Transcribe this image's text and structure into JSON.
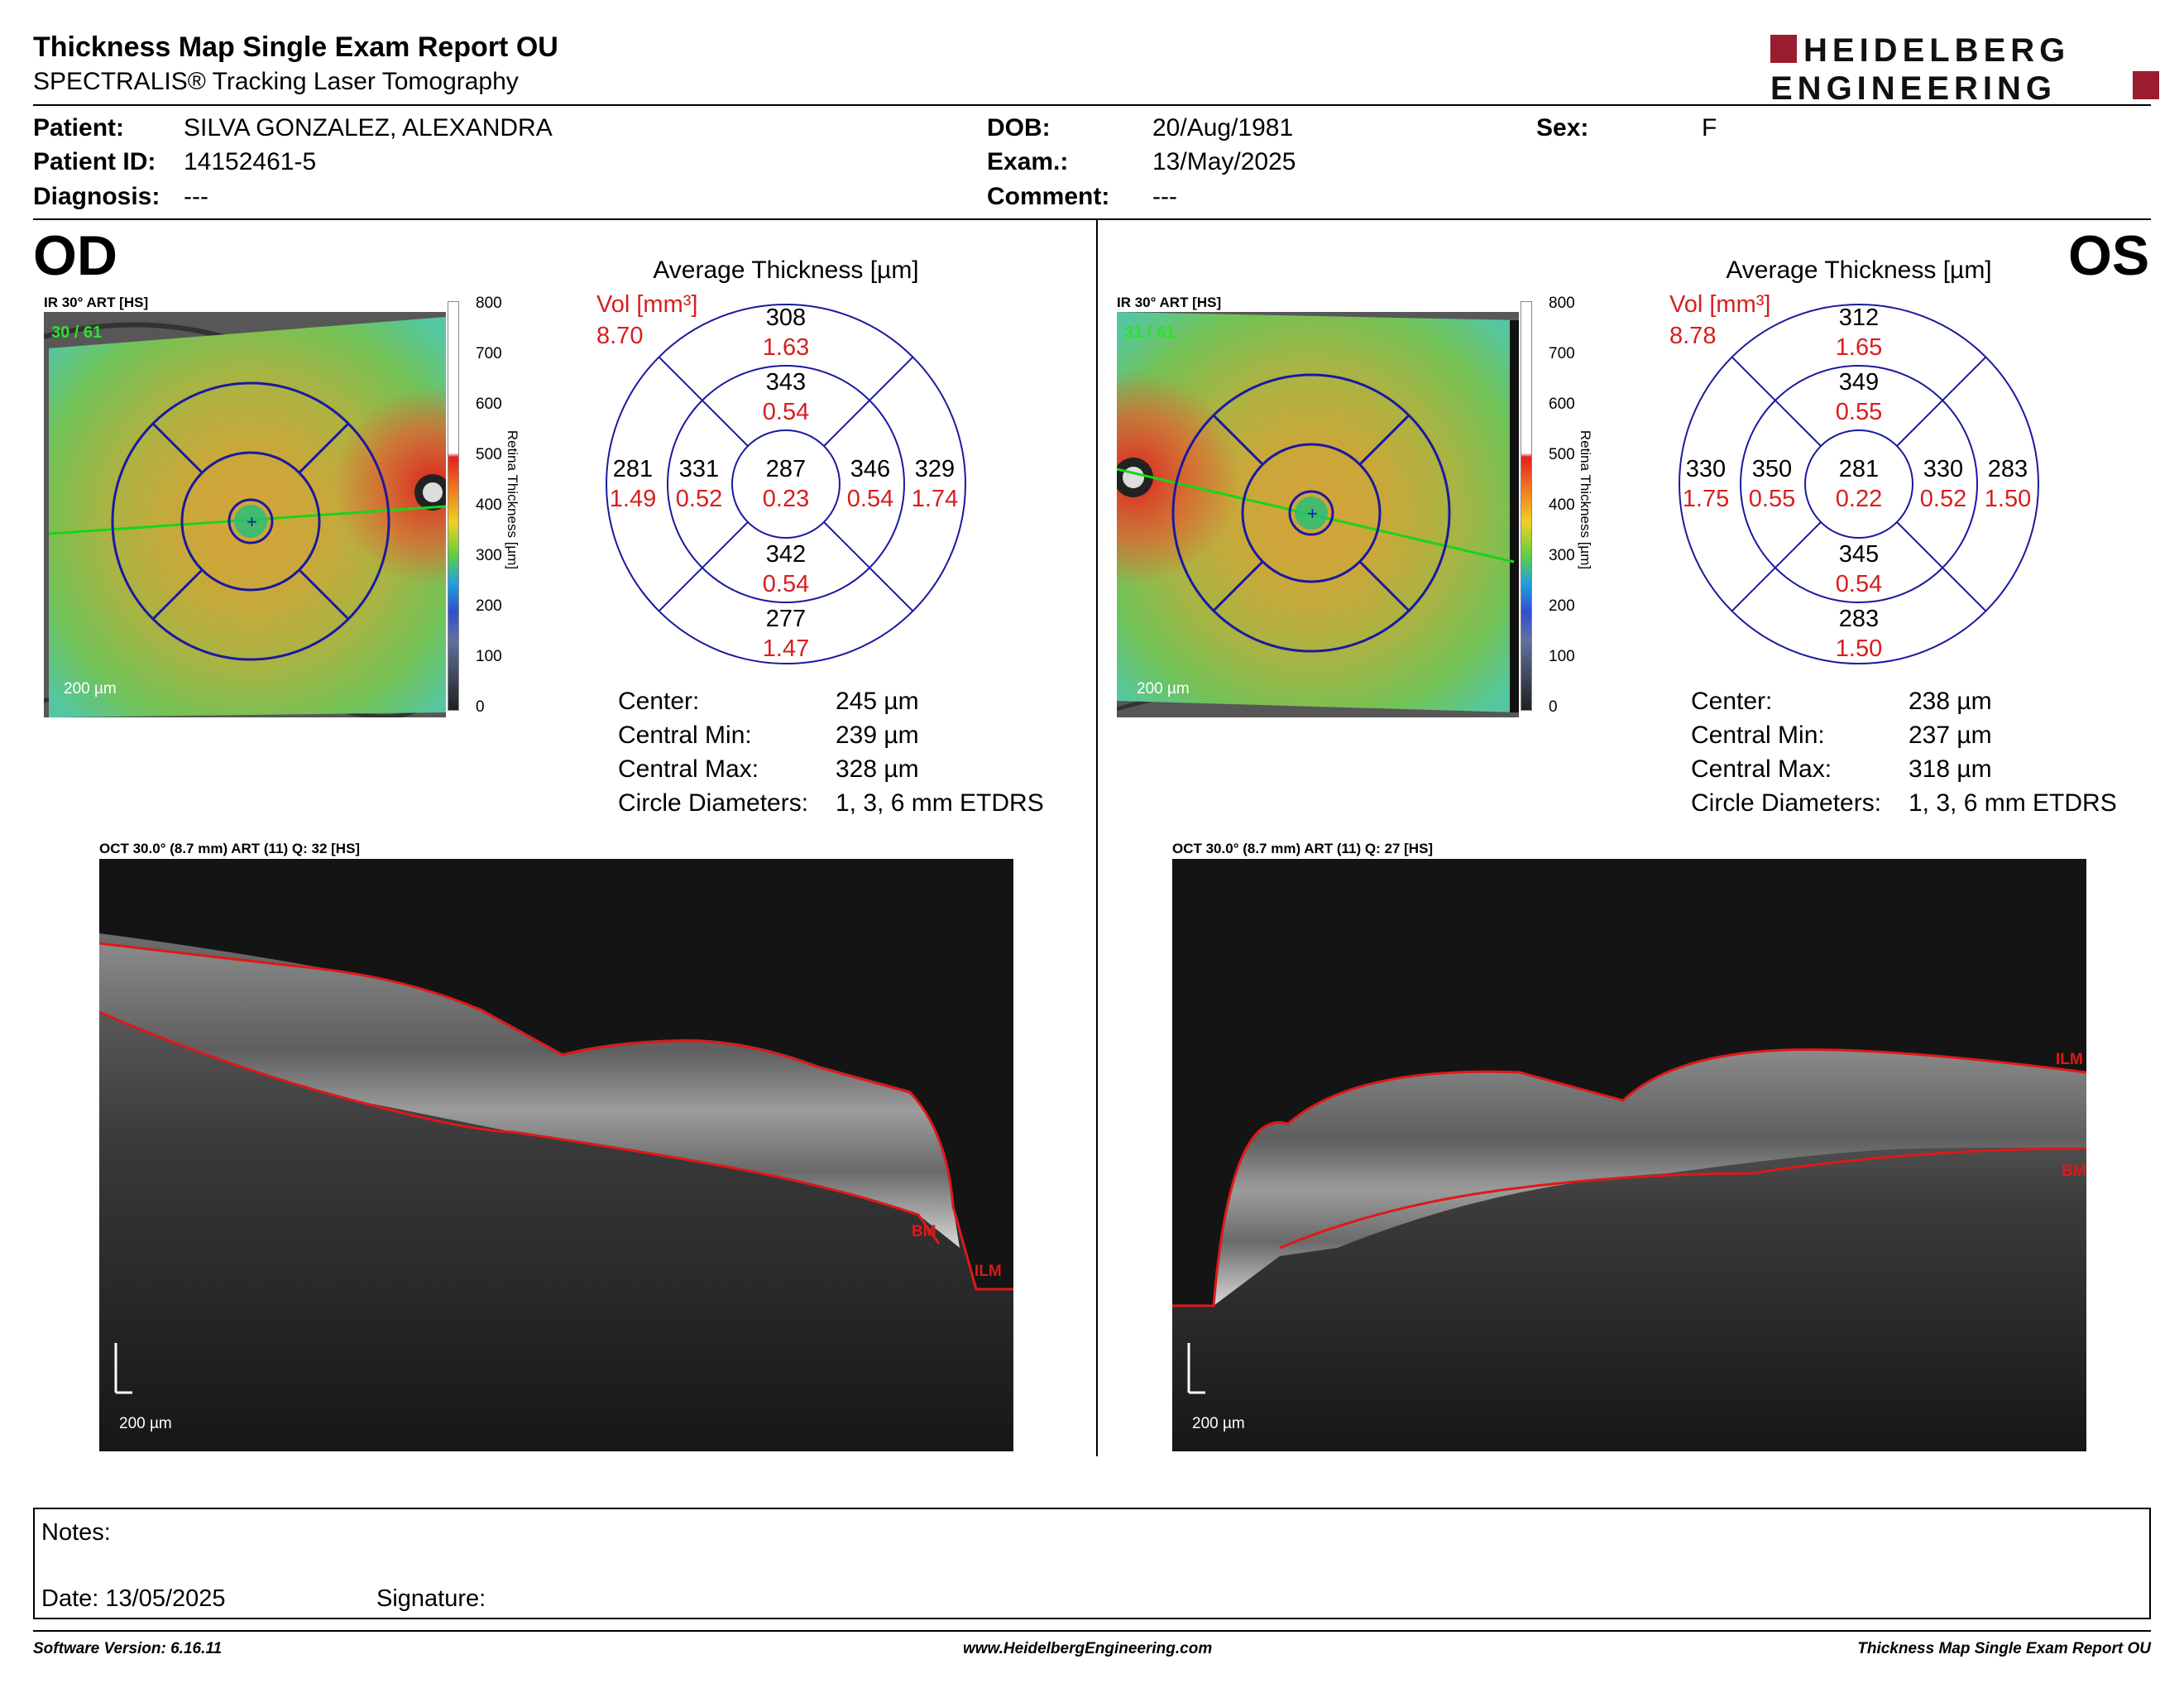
{
  "header": {
    "title": "Thickness Map Single Exam Report OU",
    "subtitle": "SPECTRALIS® Tracking Laser Tomography",
    "logo_line1": "HEIDELBERG",
    "logo_line2": "ENGINEERING",
    "logo_color": "#9b1c2e"
  },
  "patient": {
    "patient_label": "Patient:",
    "patient_value": "SILVA GONZALEZ, ALEXANDRA",
    "id_label": "Patient ID:",
    "id_value": "14152461-5",
    "diagnosis_label": "Diagnosis:",
    "diagnosis_value": "---",
    "dob_label": "DOB:",
    "dob_value": "20/Aug/1981",
    "exam_label": "Exam.:",
    "exam_value": "13/May/2025",
    "comment_label": "Comment:",
    "comment_value": "---",
    "sex_label": "Sex:",
    "sex_value": "F"
  },
  "scale": {
    "ticks": [
      "800",
      "700",
      "600",
      "500",
      "400",
      "300",
      "200",
      "100",
      "0"
    ],
    "axis_label": "Retina  Thickness [µm]"
  },
  "od": {
    "eye": "OD",
    "ir_label": "IR 30° ART [HS]",
    "frame": "30 / 61",
    "scale_bar": "200 µm",
    "grid_title": "Average Thickness [µm]",
    "vol_label": "Vol [mm³]",
    "vol_value": "8.70",
    "sectors": {
      "outer_top": {
        "t": "308",
        "v": "1.63"
      },
      "inner_top": {
        "t": "343",
        "v": "0.54"
      },
      "outer_left": {
        "t": "281",
        "v": "1.49"
      },
      "inner_left": {
        "t": "331",
        "v": "0.52"
      },
      "center": {
        "t": "287",
        "v": "0.23"
      },
      "inner_right": {
        "t": "346",
        "v": "0.54"
      },
      "outer_right": {
        "t": "329",
        "v": "1.74"
      },
      "inner_bottom": {
        "t": "342",
        "v": "0.54"
      },
      "outer_bottom": {
        "t": "277",
        "v": "1.47"
      }
    },
    "stats": {
      "center_label": "Center:",
      "center_value": "245 µm",
      "cmin_label": "Central Min:",
      "cmin_value": "239 µm",
      "cmax_label": "Central Max:",
      "cmax_value": "328 µm",
      "diam_label": "Circle Diameters:",
      "diam_value": "1, 3, 6 mm ETDRS"
    },
    "oct_label": "OCT 30.0° (8.7 mm) ART (11) Q: 32 [HS]",
    "oct_scale": "200 µm",
    "bm_tag": "BM",
    "ilm_tag": "ILM"
  },
  "os": {
    "eye": "OS",
    "ir_label": "IR 30° ART [HS]",
    "frame": "31 / 61",
    "scale_bar": "200 µm",
    "grid_title": "Average Thickness [µm]",
    "vol_label": "Vol [mm³]",
    "vol_value": "8.78",
    "sectors": {
      "outer_top": {
        "t": "312",
        "v": "1.65"
      },
      "inner_top": {
        "t": "349",
        "v": "0.55"
      },
      "outer_left": {
        "t": "330",
        "v": "1.75"
      },
      "inner_left": {
        "t": "350",
        "v": "0.55"
      },
      "center": {
        "t": "281",
        "v": "0.22"
      },
      "inner_right": {
        "t": "330",
        "v": "0.52"
      },
      "outer_right": {
        "t": "283",
        "v": "1.50"
      },
      "inner_bottom": {
        "t": "345",
        "v": "0.54"
      },
      "outer_bottom": {
        "t": "283",
        "v": "1.50"
      }
    },
    "stats": {
      "center_label": "Center:",
      "center_value": "238 µm",
      "cmin_label": "Central Min:",
      "cmin_value": "237 µm",
      "cmax_label": "Central Max:",
      "cmax_value": "318 µm",
      "diam_label": "Circle Diameters:",
      "diam_value": "1, 3, 6 mm ETDRS"
    },
    "oct_label": "OCT 30.0° (8.7 mm) ART (11) Q: 27 [HS]",
    "oct_scale": "200 µm",
    "bm_tag": "BM",
    "ilm_tag": "ILM"
  },
  "notes": {
    "notes_label": "Notes:",
    "date_label": "Date: 13/05/2025",
    "signature_label": "Signature:"
  },
  "footer": {
    "software": "Software Version: 6.16.11",
    "url": "www.HeidelbergEngineering.com",
    "report": "Thickness Map Single Exam Report OU"
  }
}
